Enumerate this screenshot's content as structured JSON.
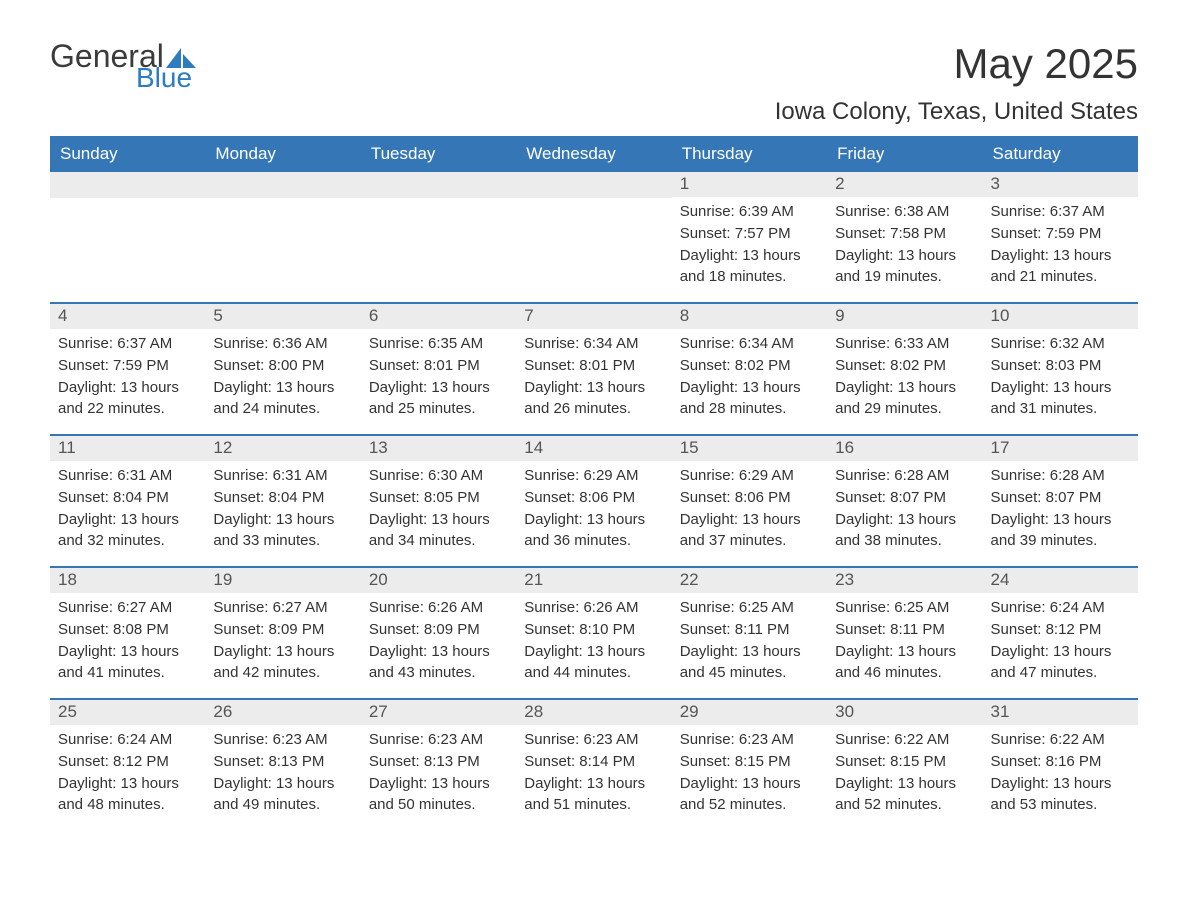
{
  "logo": {
    "general": "General",
    "blue": "Blue"
  },
  "title": {
    "month_year": "May 2025",
    "location": "Iowa Colony, Texas, United States"
  },
  "colors": {
    "header_bg": "#3577b6",
    "header_text": "#ffffff",
    "daynum_bg": "#ececec",
    "text": "#333333",
    "logo_gray": "#3b3b3b",
    "logo_blue": "#2d7bc2",
    "row_border": "#3577b6"
  },
  "weekdays": [
    "Sunday",
    "Monday",
    "Tuesday",
    "Wednesday",
    "Thursday",
    "Friday",
    "Saturday"
  ],
  "weeks": [
    [
      null,
      null,
      null,
      null,
      {
        "num": "1",
        "sunrise": "6:39 AM",
        "sunset": "7:57 PM",
        "daylight": "13 hours and 18 minutes."
      },
      {
        "num": "2",
        "sunrise": "6:38 AM",
        "sunset": "7:58 PM",
        "daylight": "13 hours and 19 minutes."
      },
      {
        "num": "3",
        "sunrise": "6:37 AM",
        "sunset": "7:59 PM",
        "daylight": "13 hours and 21 minutes."
      }
    ],
    [
      {
        "num": "4",
        "sunrise": "6:37 AM",
        "sunset": "7:59 PM",
        "daylight": "13 hours and 22 minutes."
      },
      {
        "num": "5",
        "sunrise": "6:36 AM",
        "sunset": "8:00 PM",
        "daylight": "13 hours and 24 minutes."
      },
      {
        "num": "6",
        "sunrise": "6:35 AM",
        "sunset": "8:01 PM",
        "daylight": "13 hours and 25 minutes."
      },
      {
        "num": "7",
        "sunrise": "6:34 AM",
        "sunset": "8:01 PM",
        "daylight": "13 hours and 26 minutes."
      },
      {
        "num": "8",
        "sunrise": "6:34 AM",
        "sunset": "8:02 PM",
        "daylight": "13 hours and 28 minutes."
      },
      {
        "num": "9",
        "sunrise": "6:33 AM",
        "sunset": "8:02 PM",
        "daylight": "13 hours and 29 minutes."
      },
      {
        "num": "10",
        "sunrise": "6:32 AM",
        "sunset": "8:03 PM",
        "daylight": "13 hours and 31 minutes."
      }
    ],
    [
      {
        "num": "11",
        "sunrise": "6:31 AM",
        "sunset": "8:04 PM",
        "daylight": "13 hours and 32 minutes."
      },
      {
        "num": "12",
        "sunrise": "6:31 AM",
        "sunset": "8:04 PM",
        "daylight": "13 hours and 33 minutes."
      },
      {
        "num": "13",
        "sunrise": "6:30 AM",
        "sunset": "8:05 PM",
        "daylight": "13 hours and 34 minutes."
      },
      {
        "num": "14",
        "sunrise": "6:29 AM",
        "sunset": "8:06 PM",
        "daylight": "13 hours and 36 minutes."
      },
      {
        "num": "15",
        "sunrise": "6:29 AM",
        "sunset": "8:06 PM",
        "daylight": "13 hours and 37 minutes."
      },
      {
        "num": "16",
        "sunrise": "6:28 AM",
        "sunset": "8:07 PM",
        "daylight": "13 hours and 38 minutes."
      },
      {
        "num": "17",
        "sunrise": "6:28 AM",
        "sunset": "8:07 PM",
        "daylight": "13 hours and 39 minutes."
      }
    ],
    [
      {
        "num": "18",
        "sunrise": "6:27 AM",
        "sunset": "8:08 PM",
        "daylight": "13 hours and 41 minutes."
      },
      {
        "num": "19",
        "sunrise": "6:27 AM",
        "sunset": "8:09 PM",
        "daylight": "13 hours and 42 minutes."
      },
      {
        "num": "20",
        "sunrise": "6:26 AM",
        "sunset": "8:09 PM",
        "daylight": "13 hours and 43 minutes."
      },
      {
        "num": "21",
        "sunrise": "6:26 AM",
        "sunset": "8:10 PM",
        "daylight": "13 hours and 44 minutes."
      },
      {
        "num": "22",
        "sunrise": "6:25 AM",
        "sunset": "8:11 PM",
        "daylight": "13 hours and 45 minutes."
      },
      {
        "num": "23",
        "sunrise": "6:25 AM",
        "sunset": "8:11 PM",
        "daylight": "13 hours and 46 minutes."
      },
      {
        "num": "24",
        "sunrise": "6:24 AM",
        "sunset": "8:12 PM",
        "daylight": "13 hours and 47 minutes."
      }
    ],
    [
      {
        "num": "25",
        "sunrise": "6:24 AM",
        "sunset": "8:12 PM",
        "daylight": "13 hours and 48 minutes."
      },
      {
        "num": "26",
        "sunrise": "6:23 AM",
        "sunset": "8:13 PM",
        "daylight": "13 hours and 49 minutes."
      },
      {
        "num": "27",
        "sunrise": "6:23 AM",
        "sunset": "8:13 PM",
        "daylight": "13 hours and 50 minutes."
      },
      {
        "num": "28",
        "sunrise": "6:23 AM",
        "sunset": "8:14 PM",
        "daylight": "13 hours and 51 minutes."
      },
      {
        "num": "29",
        "sunrise": "6:23 AM",
        "sunset": "8:15 PM",
        "daylight": "13 hours and 52 minutes."
      },
      {
        "num": "30",
        "sunrise": "6:22 AM",
        "sunset": "8:15 PM",
        "daylight": "13 hours and 52 minutes."
      },
      {
        "num": "31",
        "sunrise": "6:22 AM",
        "sunset": "8:16 PM",
        "daylight": "13 hours and 53 minutes."
      }
    ]
  ],
  "labels": {
    "sunrise": "Sunrise: ",
    "sunset": "Sunset: ",
    "daylight": "Daylight: "
  }
}
